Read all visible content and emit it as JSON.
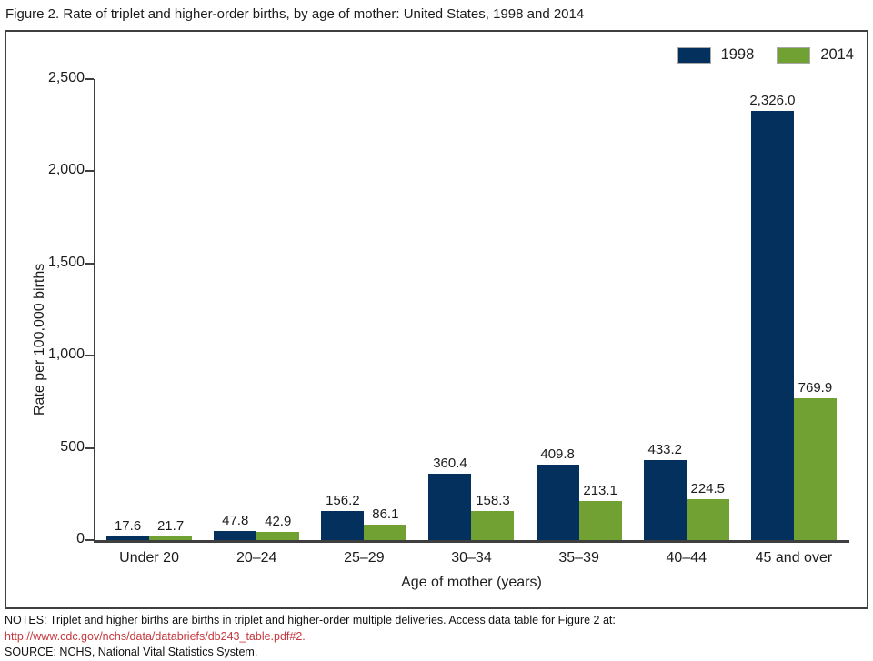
{
  "page": {
    "title": "Figure 2. Rate of triplet and higher-order births, by age of mother: United States, 1998 and 2014"
  },
  "colors": {
    "series_1998": "#03305c",
    "series_2014": "#71a133",
    "axis": "#3f3f3f",
    "link_red": "#c5393f"
  },
  "legend": {
    "items": [
      {
        "label": "1998"
      },
      {
        "label": "2014"
      }
    ]
  },
  "chart_data": {
    "type": "bar",
    "title": "Figure 2. Rate of triplet and higher-order births, by age of mother: United States, 1998 and 2014",
    "categories": [
      "Under 20",
      "20–24",
      "25–29",
      "30–34",
      "35–39",
      "40–44",
      "45 and over"
    ],
    "series": [
      {
        "name": "1998",
        "color": "#03305c",
        "values": [
          17.6,
          47.8,
          156.2,
          360.4,
          409.8,
          433.2,
          2326.0
        ],
        "labels": [
          "17.6",
          "47.8",
          "156.2",
          "360.4",
          "409.8",
          "433.2",
          "2,326.0"
        ]
      },
      {
        "name": "2014",
        "color": "#71a133",
        "values": [
          21.7,
          42.9,
          86.1,
          158.3,
          213.1,
          224.5,
          769.9
        ],
        "labels": [
          "21.7",
          "42.9",
          "86.1",
          "158.3",
          "213.1",
          "224.5",
          "769.9"
        ]
      }
    ],
    "xlabel": "Age of mother (years)",
    "ylabel": "Rate per 100,000 births",
    "ylim": [
      0,
      2500
    ],
    "yticks": [
      {
        "value": 0,
        "label": "0"
      },
      {
        "value": 500,
        "label": "500"
      },
      {
        "value": 1000,
        "label": "1,000"
      },
      {
        "value": 1500,
        "label": "1,500"
      },
      {
        "value": 2000,
        "label": "2,000"
      },
      {
        "value": 2500,
        "label": "2,500"
      }
    ],
    "grid": false,
    "legend_position": "top-right"
  },
  "notes": {
    "line1": "NOTES: Triplet and higher births are births in triplet and higher-order multiple deliveries. Access data table for Figure 2 at:",
    "link": "http://www.cdc.gov/nchs/data/databriefs/db243_table.pdf#2.",
    "source": "SOURCE: NCHS, National Vital Statistics System."
  }
}
